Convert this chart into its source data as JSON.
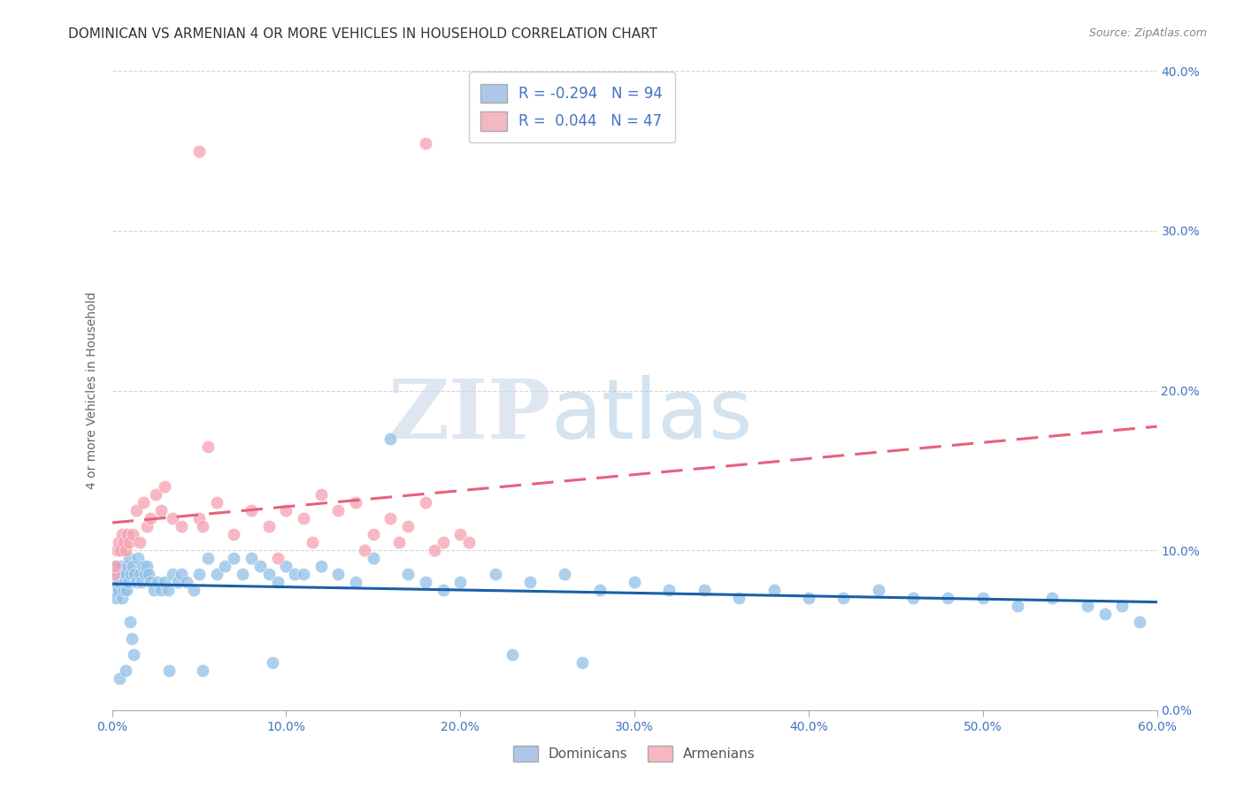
{
  "title": "DOMINICAN VS ARMENIAN 4 OR MORE VEHICLES IN HOUSEHOLD CORRELATION CHART",
  "source": "Source: ZipAtlas.com",
  "xlabel_vals": [
    0.0,
    10.0,
    20.0,
    30.0,
    40.0,
    50.0,
    60.0
  ],
  "ylabel_left": "4 or more Vehicles in Household",
  "ylabel_right_vals": [
    0.0,
    10.0,
    20.0,
    30.0,
    40.0
  ],
  "xlim": [
    0.0,
    60.0
  ],
  "ylim": [
    0.0,
    40.0
  ],
  "watermark_zip": "ZIP",
  "watermark_atlas": "atlas",
  "dominican_color": "#91c0e8",
  "armenian_color": "#f5a0b0",
  "dominican_line_color": "#1a5fa8",
  "armenian_line_color": "#e8607a",
  "title_fontsize": 11,
  "axis_label_fontsize": 10,
  "tick_fontsize": 10,
  "dominican_R": -0.294,
  "dominican_N": 94,
  "armenian_R": 0.044,
  "armenian_N": 47,
  "dom_x": [
    0.1,
    0.15,
    0.2,
    0.25,
    0.3,
    0.35,
    0.4,
    0.45,
    0.5,
    0.55,
    0.6,
    0.65,
    0.7,
    0.75,
    0.8,
    0.85,
    0.9,
    0.95,
    1.0,
    1.1,
    1.2,
    1.3,
    1.4,
    1.5,
    1.6,
    1.7,
    1.8,
    1.9,
    2.0,
    2.1,
    2.2,
    2.4,
    2.6,
    2.8,
    3.0,
    3.2,
    3.5,
    3.8,
    4.0,
    4.3,
    4.7,
    5.0,
    5.5,
    6.0,
    6.5,
    7.0,
    7.5,
    8.0,
    8.5,
    9.0,
    9.5,
    10.0,
    10.5,
    11.0,
    12.0,
    13.0,
    14.0,
    15.0,
    16.0,
    17.0,
    18.0,
    19.0,
    20.0,
    22.0,
    24.0,
    26.0,
    28.0,
    30.0,
    32.0,
    34.0,
    36.0,
    38.0,
    40.0,
    42.0,
    44.0,
    46.0,
    48.0,
    50.0,
    52.0,
    54.0,
    56.0,
    57.0,
    58.0,
    59.0,
    1.05,
    1.15,
    1.25,
    3.3,
    5.2,
    9.2,
    23.0,
    27.0,
    0.42,
    0.78
  ],
  "dom_y": [
    7.5,
    8.0,
    8.5,
    7.0,
    9.0,
    8.5,
    7.5,
    8.0,
    9.0,
    8.5,
    7.0,
    8.5,
    7.5,
    8.0,
    8.5,
    7.5,
    9.0,
    8.0,
    9.5,
    8.5,
    9.0,
    8.5,
    8.0,
    9.5,
    8.5,
    8.0,
    9.0,
    8.5,
    9.0,
    8.5,
    8.0,
    7.5,
    8.0,
    7.5,
    8.0,
    7.5,
    8.5,
    8.0,
    8.5,
    8.0,
    7.5,
    8.5,
    9.5,
    8.5,
    9.0,
    9.5,
    8.5,
    9.5,
    9.0,
    8.5,
    8.0,
    9.0,
    8.5,
    8.5,
    9.0,
    8.5,
    8.0,
    9.5,
    17.0,
    8.5,
    8.0,
    7.5,
    8.0,
    8.5,
    8.0,
    8.5,
    7.5,
    8.0,
    7.5,
    7.5,
    7.0,
    7.5,
    7.0,
    7.0,
    7.5,
    7.0,
    7.0,
    7.0,
    6.5,
    7.0,
    6.5,
    6.0,
    6.5,
    5.5,
    5.5,
    4.5,
    3.5,
    2.5,
    2.5,
    3.0,
    3.5,
    3.0,
    2.0,
    2.5
  ],
  "arm_x": [
    0.1,
    0.2,
    0.3,
    0.4,
    0.5,
    0.6,
    0.7,
    0.8,
    0.9,
    1.0,
    1.2,
    1.4,
    1.6,
    1.8,
    2.0,
    2.2,
    2.5,
    2.8,
    3.0,
    3.5,
    4.0,
    5.0,
    5.5,
    6.0,
    7.0,
    8.0,
    9.0,
    10.0,
    11.0,
    12.0,
    13.0,
    14.0,
    15.0,
    16.0,
    17.0,
    18.0,
    19.0,
    20.0,
    5.2,
    9.5,
    11.5,
    14.5,
    16.5,
    18.5,
    20.5,
    5.0,
    18.0
  ],
  "arm_y": [
    8.5,
    9.0,
    10.0,
    10.5,
    10.0,
    11.0,
    10.5,
    10.0,
    11.0,
    10.5,
    11.0,
    12.5,
    10.5,
    13.0,
    11.5,
    12.0,
    13.5,
    12.5,
    14.0,
    12.0,
    11.5,
    12.0,
    16.5,
    13.0,
    11.0,
    12.5,
    11.5,
    12.5,
    12.0,
    13.5,
    12.5,
    13.0,
    11.0,
    12.0,
    11.5,
    13.0,
    10.5,
    11.0,
    11.5,
    9.5,
    10.5,
    10.0,
    10.5,
    10.0,
    10.5,
    35.0,
    35.5
  ]
}
